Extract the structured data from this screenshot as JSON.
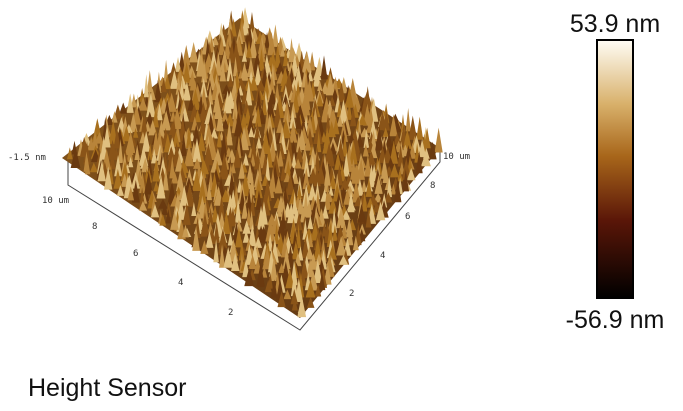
{
  "surface": {
    "z_label": "-1.5 nm",
    "left_axis": {
      "end_label": "10 um",
      "ticks": [
        "8",
        "6",
        "4",
        "2"
      ]
    },
    "right_axis": {
      "end_label": "10 um",
      "ticks": [
        "8",
        "6",
        "4",
        "2"
      ]
    }
  },
  "colorbar": {
    "max_label": "53.9 nm",
    "min_label": "-56.9 nm"
  },
  "caption": "Height Sensor"
}
